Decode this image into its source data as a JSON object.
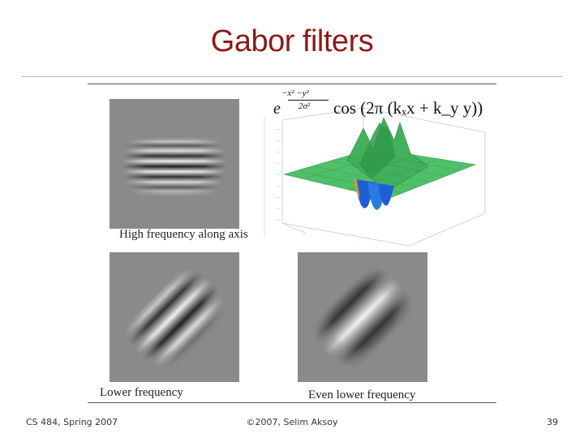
{
  "slide": {
    "title": "Gabor filters"
  },
  "figure": {
    "formula": {
      "base": "e",
      "exponent_numerator": "−x² −y²",
      "exponent_denominator": "2σ²",
      "cosine_term": "cos (2π (kₓx + k_y y))"
    },
    "captions": {
      "top_left": "High frequency along axis",
      "bottom_left": "Lower frequency",
      "bottom_right": "Even lower frequency"
    },
    "surface_colors": {
      "surface": "#4fbf6a",
      "peak": "#2f9a48",
      "trough": "#1f5fd6"
    }
  },
  "footer": {
    "left": "CS 484, Spring 2007",
    "center": "©2007, Selim Aksoy",
    "right": "39"
  }
}
